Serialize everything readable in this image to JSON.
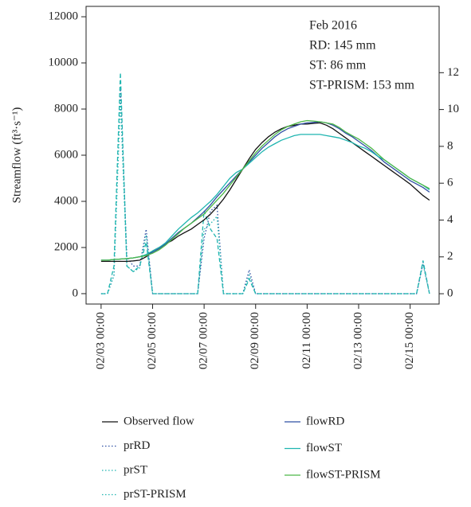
{
  "chart_data": {
    "type": "line",
    "y_label": "Streamflow (ft³·s⁻¹)",
    "annotations": [
      "Feb 2016",
      "RD: 145 mm",
      "ST: 86 mm",
      "ST-PRISM: 153 mm"
    ],
    "x": [
      "02/03 00:00",
      "02/03 06:00",
      "02/03 12:00",
      "02/03 18:00",
      "02/04 00:00",
      "02/04 06:00",
      "02/04 12:00",
      "02/04 18:00",
      "02/05 00:00",
      "02/05 06:00",
      "02/05 12:00",
      "02/05 18:00",
      "02/06 00:00",
      "02/06 06:00",
      "02/06 12:00",
      "02/06 18:00",
      "02/07 00:00",
      "02/07 06:00",
      "02/07 12:00",
      "02/07 18:00",
      "02/08 00:00",
      "02/08 06:00",
      "02/08 12:00",
      "02/08 18:00",
      "02/09 00:00",
      "02/09 06:00",
      "02/09 12:00",
      "02/09 18:00",
      "02/10 00:00",
      "02/10 06:00",
      "02/10 12:00",
      "02/10 18:00",
      "02/11 00:00",
      "02/11 06:00",
      "02/11 12:00",
      "02/11 18:00",
      "02/12 00:00",
      "02/12 06:00",
      "02/12 12:00",
      "02/12 18:00",
      "02/13 00:00",
      "02/13 06:00",
      "02/13 12:00",
      "02/13 18:00",
      "02/14 00:00",
      "02/14 06:00",
      "02/14 12:00",
      "02/14 18:00",
      "02/15 00:00",
      "02/15 06:00",
      "02/15 12:00",
      "02/15 18:00"
    ],
    "xlim": [
      "02/02 10:00",
      "02/16 03:00"
    ],
    "xticks": [
      "02/03 00:00",
      "02/05 00:00",
      "02/07 00:00",
      "02/09 00:00",
      "02/11 00:00",
      "02/13 00:00",
      "02/15 00:00"
    ],
    "ylim": [
      -450,
      12450
    ],
    "yticks": [
      0,
      2000,
      4000,
      6000,
      8000,
      10000,
      12000
    ],
    "y2lim": [
      -0.56,
      15.6
    ],
    "y2ticks": [
      0,
      2,
      4,
      6,
      8,
      10,
      12
    ],
    "series": [
      {
        "name": "Observed flow",
        "color": "#111111",
        "style": "solid",
        "values": [
          1400,
          1400,
          1400,
          1400,
          1400,
          1420,
          1450,
          1600,
          1850,
          2000,
          2150,
          2300,
          2500,
          2650,
          2800,
          3000,
          3200,
          3450,
          3750,
          4100,
          4500,
          4950,
          5400,
          5850,
          6250,
          6550,
          6800,
          7000,
          7150,
          7250,
          7300,
          7350,
          7350,
          7380,
          7400,
          7300,
          7150,
          6950,
          6750,
          6550,
          6350,
          6150,
          5950,
          5750,
          5550,
          5350,
          5150,
          4950,
          4750,
          4500,
          4250,
          4050
        ]
      },
      {
        "name": "prRD",
        "color": "#2e4fa3",
        "style": "dotted",
        "axis": "y2",
        "values": [
          0,
          0,
          1,
          11.2,
          2,
          1.5,
          1.5,
          3.5,
          0,
          0,
          0,
          0,
          0,
          0,
          0,
          0,
          3,
          4.5,
          4.8,
          0,
          0,
          0,
          0,
          1.3,
          0,
          0,
          0,
          0,
          0,
          0,
          0,
          0,
          0,
          0,
          0,
          0,
          0,
          0,
          0,
          0,
          0,
          0,
          0,
          0,
          0,
          0,
          0,
          0,
          0,
          0,
          1.7,
          0
        ]
      },
      {
        "name": "prST",
        "color": "#1fb5b0",
        "style": "dotted",
        "axis": "y2",
        "values": [
          0,
          0,
          1,
          10.5,
          1.5,
          1.2,
          1.4,
          3.2,
          0,
          0,
          0,
          0,
          0,
          0,
          0,
          0,
          3.5,
          3.8,
          4.2,
          0,
          0,
          0,
          0,
          1,
          0,
          0,
          0,
          0,
          0,
          0,
          0,
          0,
          0,
          0,
          0,
          0,
          0,
          0,
          0,
          0,
          0,
          0,
          0,
          0,
          0,
          0,
          0,
          0,
          0,
          0,
          1.6,
          0
        ]
      },
      {
        "name": "prST-PRISM",
        "color": "#1fb5b0",
        "style": "dashed",
        "axis": "y2",
        "values": [
          0,
          0,
          1.5,
          12,
          1.5,
          1.2,
          1.5,
          2.8,
          0,
          0,
          0,
          0,
          0,
          0,
          0,
          0,
          4.5,
          3.5,
          3,
          0,
          0,
          0,
          0,
          0.8,
          0,
          0,
          0,
          0,
          0,
          0,
          0,
          0,
          0,
          0,
          0,
          0,
          0,
          0,
          0,
          0,
          0,
          0,
          0,
          0,
          0,
          0,
          0,
          0,
          0,
          0,
          1.8,
          0
        ]
      },
      {
        "name": "flowRD",
        "color": "#2e4fa3",
        "style": "solid",
        "values": [
          1450,
          1450,
          1480,
          1500,
          1520,
          1550,
          1600,
          1650,
          1800,
          1950,
          2150,
          2400,
          2650,
          2850,
          3050,
          3300,
          3550,
          3850,
          4200,
          4500,
          4800,
          5100,
          5400,
          5700,
          6000,
          6300,
          6550,
          6800,
          7000,
          7150,
          7250,
          7350,
          7400,
          7420,
          7450,
          7400,
          7300,
          7150,
          6950,
          6800,
          6600,
          6400,
          6200,
          5950,
          5700,
          5500,
          5300,
          5100,
          4900,
          4750,
          4600,
          4400
        ]
      },
      {
        "name": "flowST",
        "color": "#1fb5b0",
        "style": "solid",
        "values": [
          1450,
          1450,
          1480,
          1500,
          1520,
          1550,
          1600,
          1700,
          1850,
          2000,
          2200,
          2500,
          2800,
          3050,
          3300,
          3500,
          3750,
          4000,
          4300,
          4650,
          5000,
          5250,
          5400,
          5650,
          5900,
          6150,
          6350,
          6500,
          6650,
          6750,
          6850,
          6900,
          6900,
          6900,
          6900,
          6850,
          6800,
          6750,
          6650,
          6550,
          6400,
          6300,
          6150,
          5950,
          5800,
          5600,
          5400,
          5200,
          5000,
          4850,
          4700,
          4500
        ]
      },
      {
        "name": "flowST-PRISM",
        "color": "#4cb848",
        "style": "solid",
        "values": [
          1450,
          1450,
          1480,
          1500,
          1520,
          1550,
          1600,
          1650,
          1750,
          1900,
          2100,
          2350,
          2600,
          2850,
          3050,
          3250,
          3450,
          3750,
          4050,
          4350,
          4700,
          5050,
          5400,
          5750,
          6100,
          6400,
          6650,
          6900,
          7100,
          7250,
          7350,
          7450,
          7500,
          7480,
          7450,
          7400,
          7350,
          7200,
          7000,
          6850,
          6700,
          6500,
          6300,
          6050,
          5800,
          5600,
          5400,
          5200,
          5000,
          4850,
          4700,
          4550
        ]
      }
    ]
  }
}
